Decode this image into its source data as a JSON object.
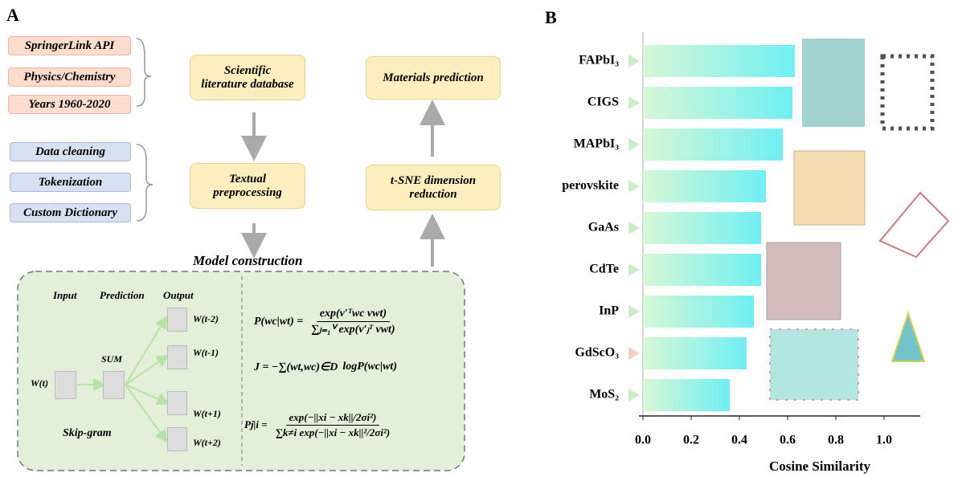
{
  "panel_a": {
    "label": "A",
    "sources": [
      "SpringerLink API",
      "Physics/Chemistry",
      "Years 1960-2020"
    ],
    "preprocessing_steps": [
      "Data cleaning",
      "Tokenization",
      "Custom Dictionary"
    ],
    "pipeline": {
      "literature": "Scientific literature database",
      "preprocessing": "Textual preprocessing",
      "prediction": "Materials prediction",
      "tsne": "t-SNE dimension reduction"
    },
    "model": {
      "title": "Model construction",
      "columns": [
        "Input",
        "Prediction",
        "Output"
      ],
      "input": "W(t)",
      "sum": "SUM",
      "outputs": [
        "W(t-2)",
        "W(t-1)",
        "W(t+1)",
        "W(t+2)"
      ],
      "method": "Skip-gram",
      "equations": [
        {
          "lhs": "P(wc|wt) =",
          "num": "exp(v′ᵀwc vwt)",
          "den": "∑ⱼ₌₁ⱽ exp(v′ⱼᵀ vwt)"
        },
        {
          "lhs": "J = −∑(wt,wc)∈D",
          "num": "logP(wc|wt)",
          "den": ""
        },
        {
          "lhs": "Pj|i =",
          "num": "exp(−||xi − xk||/2σi²)",
          "den": "∑k≠i exp(−||xi − xk||²/2σi²)"
        }
      ]
    }
  },
  "chart_data": {
    "type": "bar",
    "orientation": "horizontal",
    "label": "B",
    "categories": [
      "FAPbI₃",
      "CIGS",
      "MAPbI₃",
      "perovskite",
      "GaAs",
      "CdTe",
      "InP",
      "GdScO₃",
      "MoS₂"
    ],
    "values": [
      0.63,
      0.62,
      0.58,
      0.51,
      0.49,
      0.49,
      0.46,
      0.43,
      0.36
    ],
    "color_gradient": [
      "#d8f7d6",
      "#6ff0f4"
    ],
    "marker_colors": [
      "#cdeccb",
      "#cdeccb",
      "#cdeccb",
      "#cdeccb",
      "#cdeccb",
      "#cdeccb",
      "#cdeccb",
      "#f6cfc4",
      "#cdeccb"
    ],
    "xlabel": "Cosine Similarity",
    "xlim": [
      0,
      1.15
    ],
    "xticks": [
      {
        "value": 0,
        "label": "0.0"
      },
      {
        "value": 0.2,
        "label": "0.2"
      },
      {
        "value": 0.4,
        "label": "0.4"
      },
      {
        "value": 0.6,
        "label": "0.6"
      },
      {
        "value": 0.8,
        "label": "0.8"
      },
      {
        "value": 1,
        "label": "1.0"
      }
    ]
  }
}
